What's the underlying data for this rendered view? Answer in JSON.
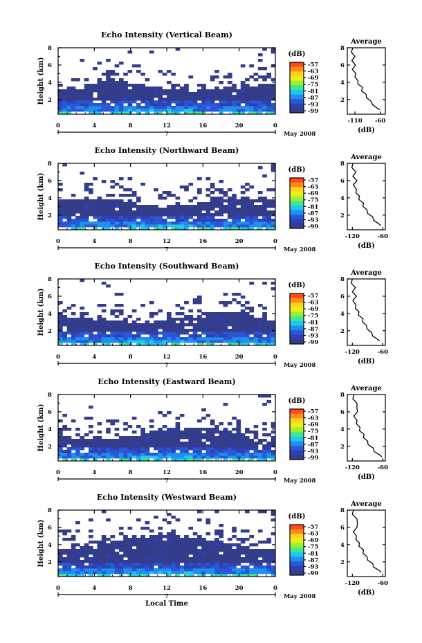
{
  "chart_data": [
    {
      "type": "heatmap",
      "title": "Echo Intensity (Vertical Beam)",
      "ylabel": "Height (km)",
      "xlabel": "",
      "x_ticks": [
        "0",
        "4",
        "8",
        "12",
        "16",
        "20",
        "0"
      ],
      "y_ticks": [
        "2",
        "4",
        "6",
        "8"
      ],
      "date_mark": "7",
      "date_label": "May 2008",
      "ylim": [
        0.3,
        8
      ],
      "xlim": [
        0,
        24
      ],
      "colorbar": {
        "unit": "(dB)",
        "ticks": [
          "-57",
          "-63",
          "-69",
          "-75",
          "-81",
          "-87",
          "-93",
          "-99"
        ]
      },
      "average": {
        "title": "Average",
        "xlabel": "(dB)",
        "x_ticks": [
          "-110",
          "-60"
        ],
        "y_ticks": [
          "2",
          "4",
          "6",
          "8"
        ],
        "xlim": [
          -125,
          -50
        ],
        "values": [
          {
            "h": 0.8,
            "v": -58
          },
          {
            "h": 1.0,
            "v": -68
          },
          {
            "h": 1.4,
            "v": -73
          },
          {
            "h": 1.8,
            "v": -80
          },
          {
            "h": 2.2,
            "v": -85
          },
          {
            "h": 2.6,
            "v": -90
          },
          {
            "h": 3.0,
            "v": -95
          },
          {
            "h": 3.4,
            "v": -97
          },
          {
            "h": 3.8,
            "v": -102
          },
          {
            "h": 4.2,
            "v": -106
          },
          {
            "h": 4.6,
            "v": -108
          },
          {
            "h": 5.0,
            "v": -110
          },
          {
            "h": 5.5,
            "v": -113
          },
          {
            "h": 6.0,
            "v": -111
          },
          {
            "h": 6.5,
            "v": -114
          },
          {
            "h": 7.0,
            "v": -112
          },
          {
            "h": 7.5,
            "v": -115
          },
          {
            "h": 8.0,
            "v": -116
          }
        ]
      }
    },
    {
      "type": "heatmap",
      "title": "Echo Intensity (Northward Beam)",
      "ylabel": "Height (km)",
      "xlabel": "",
      "x_ticks": [
        "0",
        "4",
        "8",
        "12",
        "16",
        "20",
        "0"
      ],
      "y_ticks": [
        "2",
        "4",
        "6",
        "8"
      ],
      "date_mark": "7",
      "date_label": "May 2008",
      "ylim": [
        0.3,
        8
      ],
      "xlim": [
        0,
        24
      ],
      "colorbar": {
        "unit": "(dB)",
        "ticks": [
          "-57",
          "-63",
          "-69",
          "-75",
          "-81",
          "-87",
          "-93",
          "-99"
        ]
      },
      "average": {
        "title": "Average",
        "xlabel": "(dB)",
        "x_ticks": [
          "-120",
          "-60"
        ],
        "y_ticks": [
          "2",
          "4",
          "6",
          "8"
        ],
        "xlim": [
          -130,
          -55
        ],
        "values": [
          {
            "h": 0.8,
            "v": -62
          },
          {
            "h": 1.0,
            "v": -70
          },
          {
            "h": 1.4,
            "v": -76
          },
          {
            "h": 1.8,
            "v": -82
          },
          {
            "h": 2.2,
            "v": -88
          },
          {
            "h": 2.6,
            "v": -93
          },
          {
            "h": 3.0,
            "v": -97
          },
          {
            "h": 3.4,
            "v": -100
          },
          {
            "h": 3.8,
            "v": -105
          },
          {
            "h": 4.2,
            "v": -108
          },
          {
            "h": 4.6,
            "v": -111
          },
          {
            "h": 5.0,
            "v": -114
          },
          {
            "h": 5.5,
            "v": -116
          },
          {
            "h": 6.0,
            "v": -113
          },
          {
            "h": 6.5,
            "v": -117
          },
          {
            "h": 7.0,
            "v": -115
          },
          {
            "h": 7.5,
            "v": -119
          },
          {
            "h": 8.0,
            "v": -121
          }
        ]
      }
    },
    {
      "type": "heatmap",
      "title": "Echo Intensity (Southward Beam)",
      "ylabel": "Height (km)",
      "xlabel": "",
      "x_ticks": [
        "0",
        "4",
        "8",
        "12",
        "16",
        "20",
        "0"
      ],
      "y_ticks": [
        "2",
        "4",
        "6",
        "8"
      ],
      "date_mark": "7",
      "date_label": "May 2008",
      "ylim": [
        0.3,
        8
      ],
      "xlim": [
        0,
        24
      ],
      "colorbar": {
        "unit": "(dB)",
        "ticks": [
          "-57",
          "-63",
          "-69",
          "-75",
          "-81",
          "-87",
          "-93",
          "-99"
        ]
      },
      "average": {
        "title": "Average",
        "xlabel": "(dB)",
        "x_ticks": [
          "-120",
          "-60"
        ],
        "y_ticks": [
          "2",
          "4",
          "6",
          "8"
        ],
        "xlim": [
          -130,
          -55
        ],
        "values": [
          {
            "h": 0.8,
            "v": -64
          },
          {
            "h": 1.0,
            "v": -72
          },
          {
            "h": 1.4,
            "v": -78
          },
          {
            "h": 1.8,
            "v": -84
          },
          {
            "h": 2.2,
            "v": -89
          },
          {
            "h": 2.6,
            "v": -94
          },
          {
            "h": 3.0,
            "v": -98
          },
          {
            "h": 3.4,
            "v": -101
          },
          {
            "h": 3.8,
            "v": -106
          },
          {
            "h": 4.2,
            "v": -109
          },
          {
            "h": 4.6,
            "v": -112
          },
          {
            "h": 5.0,
            "v": -115
          },
          {
            "h": 5.5,
            "v": -117
          },
          {
            "h": 6.0,
            "v": -114
          },
          {
            "h": 6.5,
            "v": -118
          },
          {
            "h": 7.0,
            "v": -116
          },
          {
            "h": 7.5,
            "v": -120
          },
          {
            "h": 8.0,
            "v": -122
          }
        ]
      }
    },
    {
      "type": "heatmap",
      "title": "Echo Intensity (Eastward Beam)",
      "ylabel": "Height (km)",
      "xlabel": "",
      "x_ticks": [
        "0",
        "4",
        "8",
        "12",
        "16",
        "20",
        "0"
      ],
      "y_ticks": [
        "2",
        "4",
        "6",
        "8"
      ],
      "date_mark": "7",
      "date_label": "May 2008",
      "ylim": [
        0.3,
        8
      ],
      "xlim": [
        0,
        24
      ],
      "colorbar": {
        "unit": "(dB)",
        "ticks": [
          "-57",
          "-63",
          "-69",
          "-75",
          "-81",
          "-87",
          "-93",
          "-99"
        ]
      },
      "average": {
        "title": "Average",
        "xlabel": "(dB)",
        "x_ticks": [
          "-120",
          "-60"
        ],
        "y_ticks": [
          "2",
          "4",
          "6",
          "8"
        ],
        "xlim": [
          -130,
          -55
        ],
        "values": [
          {
            "h": 0.8,
            "v": -60
          },
          {
            "h": 1.0,
            "v": -68
          },
          {
            "h": 1.4,
            "v": -75
          },
          {
            "h": 1.8,
            "v": -81
          },
          {
            "h": 2.2,
            "v": -87
          },
          {
            "h": 2.6,
            "v": -92
          },
          {
            "h": 3.0,
            "v": -96
          },
          {
            "h": 3.4,
            "v": -99
          },
          {
            "h": 3.8,
            "v": -104
          },
          {
            "h": 4.2,
            "v": -107
          },
          {
            "h": 4.6,
            "v": -110
          },
          {
            "h": 5.0,
            "v": -113
          },
          {
            "h": 5.5,
            "v": -115
          },
          {
            "h": 6.0,
            "v": -112
          },
          {
            "h": 6.5,
            "v": -109
          },
          {
            "h": 7.0,
            "v": -113
          },
          {
            "h": 7.5,
            "v": -117
          },
          {
            "h": 8.0,
            "v": -119
          }
        ]
      }
    },
    {
      "type": "heatmap",
      "title": "Echo Intensity (Westward Beam)",
      "ylabel": "Height (km)",
      "xlabel": "Local Time",
      "x_ticks": [
        "0",
        "4",
        "8",
        "12",
        "16",
        "20",
        "0"
      ],
      "y_ticks": [
        "2",
        "4",
        "6",
        "8"
      ],
      "date_mark": "7",
      "date_label": "May 2008",
      "ylim": [
        0.3,
        8
      ],
      "xlim": [
        0,
        24
      ],
      "colorbar": {
        "unit": "(dB)",
        "ticks": [
          "-57",
          "-63",
          "-69",
          "-75",
          "-81",
          "-87",
          "-93",
          "-99"
        ]
      },
      "average": {
        "title": "Average",
        "xlabel": "(dB)",
        "x_ticks": [
          "-120",
          "-60"
        ],
        "y_ticks": [
          "2",
          "4",
          "6",
          "8"
        ],
        "xlim": [
          -130,
          -55
        ],
        "values": [
          {
            "h": 0.8,
            "v": -61
          },
          {
            "h": 1.0,
            "v": -69
          },
          {
            "h": 1.4,
            "v": -76
          },
          {
            "h": 1.8,
            "v": -82
          },
          {
            "h": 2.2,
            "v": -88
          },
          {
            "h": 2.6,
            "v": -93
          },
          {
            "h": 3.0,
            "v": -97
          },
          {
            "h": 3.4,
            "v": -100
          },
          {
            "h": 3.8,
            "v": -105
          },
          {
            "h": 4.2,
            "v": -108
          },
          {
            "h": 4.6,
            "v": -111
          },
          {
            "h": 5.0,
            "v": -114
          },
          {
            "h": 5.5,
            "v": -116
          },
          {
            "h": 6.0,
            "v": -113
          },
          {
            "h": 6.5,
            "v": -108
          },
          {
            "h": 7.0,
            "v": -113
          },
          {
            "h": 7.5,
            "v": -118
          },
          {
            "h": 8.0,
            "v": -120
          }
        ]
      }
    }
  ],
  "colors": {
    "scale": [
      "#ff4a1c",
      "#ff8a1c",
      "#ffd21c",
      "#e8f018",
      "#9cf030",
      "#40e890",
      "#20c8f0",
      "#2090f0",
      "#2858d8",
      "#3040b0",
      "#343c8c"
    ],
    "background": "#ffffff",
    "foreground": "#000000"
  }
}
